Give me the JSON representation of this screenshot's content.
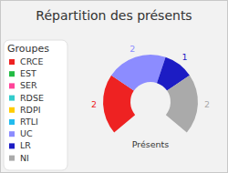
{
  "chart_data": {
    "type": "pie",
    "title": "Répartition des présents",
    "legend_title": "Groupes",
    "center_label": "Présents",
    "legend": "left",
    "categories": [
      "CRCE",
      "EST",
      "SER",
      "RDSE",
      "RDPI",
      "RTLI",
      "UC",
      "LR",
      "NI"
    ],
    "values": [
      2,
      0,
      0,
      0,
      0,
      0,
      2,
      1,
      2
    ],
    "colors": [
      "#ee2222",
      "#22bb44",
      "#ff4499",
      "#33cccc",
      "#ffcc00",
      "#22bbee",
      "#8c8cff",
      "#1c1cc4",
      "#aaaaaa"
    ],
    "data_labels": true
  }
}
